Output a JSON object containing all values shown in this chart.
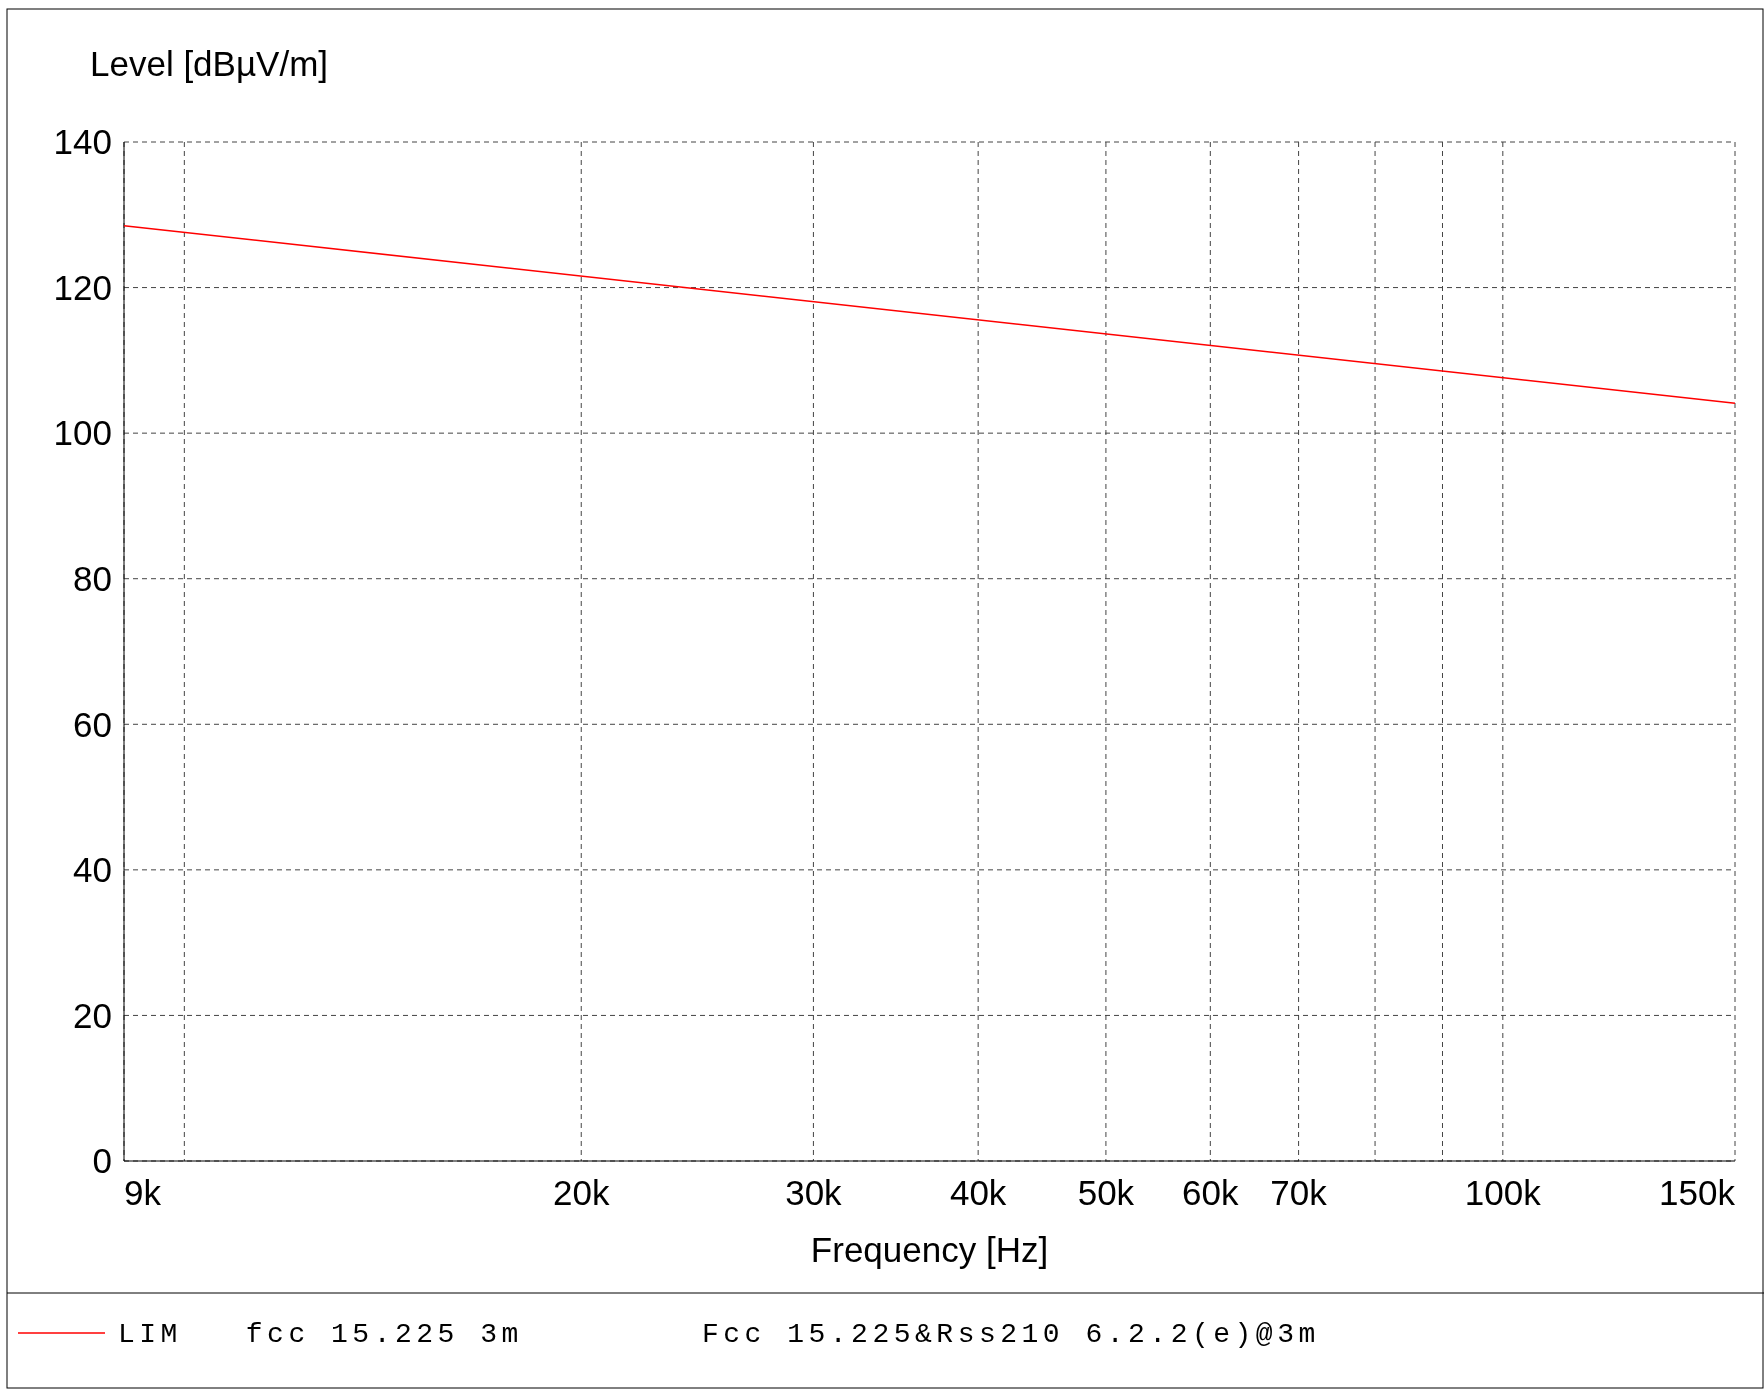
{
  "chart_data": {
    "type": "line",
    "ylabel": "Level [dBµV/m]",
    "xlabel": "Frequency [Hz]",
    "log": "x",
    "x": [
      9000,
      150000
    ],
    "series": [
      {
        "name": "LIM   fcc 15.225 3m",
        "color": "#ff0000",
        "values": [
          128.5,
          104.1
        ]
      }
    ],
    "xlim": [
      9000,
      150000
    ],
    "xticks": [
      {
        "value": 9000,
        "label": "9k"
      },
      {
        "value": 10000,
        "label": null
      },
      {
        "value": 20000,
        "label": "20k"
      },
      {
        "value": 30000,
        "label": "30k"
      },
      {
        "value": 40000,
        "label": "40k"
      },
      {
        "value": 50000,
        "label": "50k"
      },
      {
        "value": 60000,
        "label": "60k"
      },
      {
        "value": 70000,
        "label": "70k"
      },
      {
        "value": 80000,
        "label": null
      },
      {
        "value": 90000,
        "label": null
      },
      {
        "value": 100000,
        "label": "100k"
      },
      {
        "value": 150000,
        "label": "150k"
      }
    ],
    "ylim": [
      0,
      140
    ],
    "yticks": [
      0,
      20,
      40,
      60,
      80,
      100,
      120,
      140
    ],
    "grid": true,
    "legend": "bottom",
    "marker": "none",
    "line_style": "solid",
    "annotations": [
      "Fcc 15.225&Rss210 6.2.2(e)@3m"
    ]
  }
}
